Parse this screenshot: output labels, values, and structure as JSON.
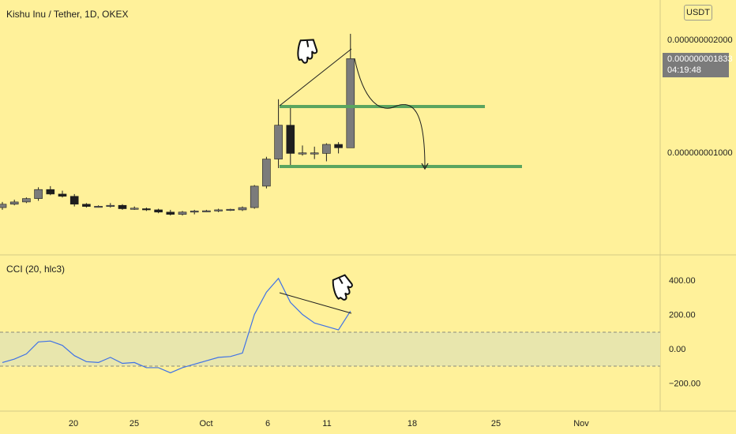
{
  "header": {
    "symbol_title": "Kishu Inu / Tether, 1D, OKEX",
    "currency_label": "USDT"
  },
  "price_badge": {
    "price": "0.000000001833",
    "countdown": "04:19:48"
  },
  "indicator": {
    "label": "CCI (20, hlc3)"
  },
  "colors": {
    "background": "#fff19a",
    "candle_up": "#7b7b7b",
    "candle_down": "#1e1e1e",
    "support_resistance": "#5ba55f",
    "cci_line": "#3f72e6",
    "cci_band": "#e8e6ad"
  },
  "chart_data": [
    {
      "type": "candlestick",
      "title": "Kishu Inu / Tether, 1D, OKEX",
      "y_axis_labels": [
        "0.000000002000",
        "0.000000001000"
      ],
      "x_axis_labels": [
        "20",
        "25",
        "Oct",
        "6",
        "11",
        "18",
        "25",
        "Nov"
      ],
      "last_price": 1.833e-09,
      "candles_approx": [
        {
          "o": 5.1e-10,
          "h": 5.6e-10,
          "l": 4.9e-10,
          "c": 5.4e-10
        },
        {
          "o": 5.4e-10,
          "h": 5.8e-10,
          "l": 5.3e-10,
          "c": 5.6e-10
        },
        {
          "o": 5.6e-10,
          "h": 6e-10,
          "l": 5.5e-10,
          "c": 5.9e-10
        },
        {
          "o": 5.9e-10,
          "h": 6.9e-10,
          "l": 5.7e-10,
          "c": 6.7e-10
        },
        {
          "o": 6.7e-10,
          "h": 7e-10,
          "l": 6.2e-10,
          "c": 6.3e-10
        },
        {
          "o": 6.3e-10,
          "h": 6.6e-10,
          "l": 6e-10,
          "c": 6.1e-10
        },
        {
          "o": 6.1e-10,
          "h": 6.3e-10,
          "l": 5.2e-10,
          "c": 5.4e-10
        },
        {
          "o": 5.4e-10,
          "h": 5.5e-10,
          "l": 5.1e-10,
          "c": 5.2e-10
        },
        {
          "o": 5.2e-10,
          "h": 5.3e-10,
          "l": 5.1e-10,
          "c": 5.22e-10
        },
        {
          "o": 5.2e-10,
          "h": 5.5e-10,
          "l": 5.1e-10,
          "c": 5.3e-10
        },
        {
          "o": 5.3e-10,
          "h": 5.4e-10,
          "l": 4.9e-10,
          "c": 5e-10
        },
        {
          "o": 5e-10,
          "h": 5.2e-10,
          "l": 4.9e-10,
          "c": 5.05e-10
        },
        {
          "o": 5e-10,
          "h": 5.1e-10,
          "l": 4.8e-10,
          "c": 4.9e-10
        },
        {
          "o": 4.9e-10,
          "h": 5e-10,
          "l": 4.6e-10,
          "c": 4.7e-10
        },
        {
          "o": 4.7e-10,
          "h": 4.9e-10,
          "l": 4.4e-10,
          "c": 4.5e-10
        },
        {
          "o": 4.5e-10,
          "h": 4.8e-10,
          "l": 4.4e-10,
          "c": 4.7e-10
        },
        {
          "o": 4.7e-10,
          "h": 4.9e-10,
          "l": 4.5e-10,
          "c": 4.8e-10
        },
        {
          "o": 4.8e-10,
          "h": 4.9e-10,
          "l": 4.7e-10,
          "c": 4.82e-10
        },
        {
          "o": 4.8e-10,
          "h": 5e-10,
          "l": 4.7e-10,
          "c": 4.9e-10
        },
        {
          "o": 4.9e-10,
          "h": 5e-10,
          "l": 4.8e-10,
          "c": 4.95e-10
        },
        {
          "o": 4.9e-10,
          "h": 5.2e-10,
          "l": 4.8e-10,
          "c": 5.1e-10
        },
        {
          "o": 5.1e-10,
          "h": 7.1e-10,
          "l": 5e-10,
          "c": 7e-10
        },
        {
          "o": 7e-10,
          "h": 9.6e-10,
          "l": 6.8e-10,
          "c": 9.4e-10
        },
        {
          "o": 9.4e-10,
          "h": 1.47e-09,
          "l": 8.6e-10,
          "c": 1.24e-09
        },
        {
          "o": 1.24e-09,
          "h": 1.42e-09,
          "l": 8.8e-10,
          "c": 9.9e-10
        },
        {
          "o": 9.9e-10,
          "h": 1.06e-09,
          "l": 9.7e-10,
          "c": 9.95e-10
        },
        {
          "o": 9.9e-10,
          "h": 1.05e-09,
          "l": 9.4e-10,
          "c": 9.95e-10
        },
        {
          "o": 9.9e-10,
          "h": 1.08e-09,
          "l": 9.2e-10,
          "c": 1.07e-09
        },
        {
          "o": 1.07e-09,
          "h": 1.09e-09,
          "l": 9.9e-10,
          "c": 1.04e-09
        },
        {
          "o": 1.04e-09,
          "h": 2.05e-09,
          "l": 1.04e-09,
          "c": 1.83e-09
        }
      ],
      "drawings": {
        "resistance_level": 1.45e-09,
        "support_level": 9.3e-10
      }
    },
    {
      "type": "line",
      "title": "CCI (20, hlc3)",
      "y_axis_labels": [
        "400.00",
        "200.00",
        "0.00",
        "−200.00"
      ],
      "band": [
        -100,
        100
      ],
      "values": [
        -80,
        -60,
        -30,
        40,
        45,
        20,
        -40,
        -75,
        -80,
        -50,
        -85,
        -80,
        -110,
        -110,
        -140,
        -110,
        -90,
        -70,
        -50,
        -45,
        -25,
        200,
        330,
        410,
        270,
        200,
        150,
        130,
        110,
        220
      ]
    }
  ]
}
